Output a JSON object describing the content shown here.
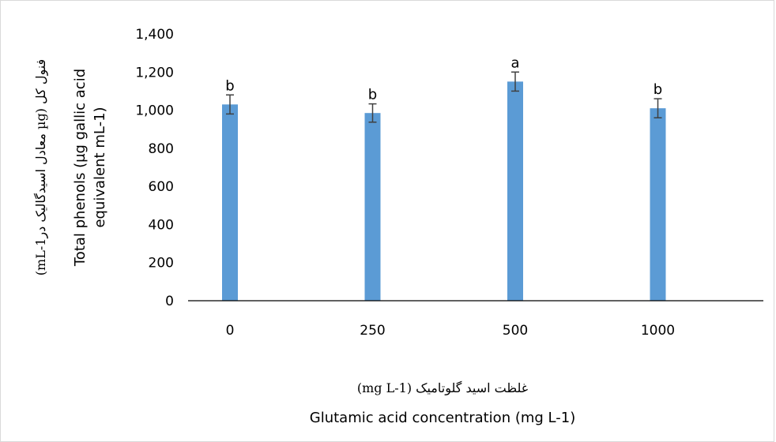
{
  "chart_data": {
    "type": "bar",
    "categories": [
      "0",
      "250",
      "500",
      "1000"
    ],
    "values": [
      1030,
      985,
      1150,
      1010
    ],
    "errors": [
      50,
      48,
      50,
      50
    ],
    "significance_letters": [
      "b",
      "b",
      "a",
      "b"
    ],
    "ylim": [
      0,
      1400
    ],
    "yticks": [
      0,
      200,
      400,
      600,
      800,
      1000,
      1200,
      1400
    ],
    "ytick_labels": [
      "0",
      "200",
      "400",
      "600",
      "800",
      "1,000",
      "1,200",
      "1,400"
    ],
    "ylabel_en": [
      "Total phenols (µg gallic acid",
      "equivalent mL-1)"
    ],
    "ylabel_fa": "فنول کل (µg معادل اسیدگالیک درmL-1)",
    "xlabel_fa": "غلظت اسید گلوتامیک (mg L-1)",
    "xlabel_en": "Glutamic acid concentration (mg L-1)",
    "grid": false,
    "bar_color": "#5B9BD5",
    "error_bar_color": "#404040"
  }
}
